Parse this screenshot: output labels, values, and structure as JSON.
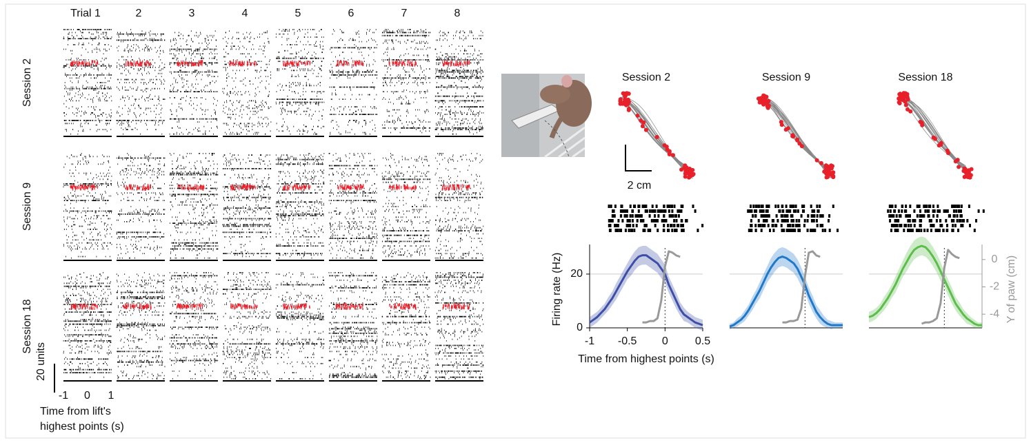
{
  "raster": {
    "trials": [
      "Trial 1",
      "2",
      "3",
      "4",
      "5",
      "6",
      "7",
      "8"
    ],
    "sessions": [
      "Session 2",
      "Session 9",
      "Session 18"
    ],
    "scale_label": "20 units",
    "xticks": [
      -1,
      0,
      1
    ],
    "xlabel": [
      "Time from lift's",
      "highest points (s)"
    ]
  },
  "trajectories": {
    "titles": [
      "Session 2",
      "Session 9",
      "Session 18"
    ],
    "scale_label": "2 cm"
  },
  "axis_labels": {
    "y": "Firing rate (Hz)",
    "y2": "Y of paw (cm)",
    "x": "Time from highest points (s)"
  },
  "chart_data": [
    {
      "type": "line",
      "x": [
        -1,
        -0.95,
        -0.9,
        -0.85,
        -0.8,
        -0.75,
        -0.7,
        -0.65,
        -0.6,
        -0.55,
        -0.5,
        -0.45,
        -0.4,
        -0.35,
        -0.3,
        -0.25,
        -0.2,
        -0.15,
        -0.1,
        -0.05,
        0,
        0.05,
        0.1,
        0.15,
        0.2,
        0.25,
        0.3,
        0.35,
        0.4,
        0.45,
        0.5
      ],
      "xlim": [
        -1,
        0.5
      ],
      "xticks": [
        -1,
        -0.5,
        0,
        0.5
      ],
      "ylim": [
        0,
        31
      ],
      "yticks": [
        0,
        20
      ],
      "grid": true,
      "y2lim": [
        -5,
        1.1
      ],
      "vline": 0,
      "series": [
        {
          "color": "#3d4ea6",
          "values": [
            2,
            3,
            4,
            5.5,
            7,
            9,
            11,
            13.5,
            16,
            18.5,
            21,
            23,
            25,
            26.5,
            27,
            27,
            26,
            25,
            24,
            22,
            20,
            16,
            13,
            10,
            7,
            5,
            4,
            3,
            2,
            1.5,
            1
          ],
          "error": [
            2,
            2,
            2,
            2,
            2,
            2.5,
            2.5,
            3,
            3,
            3,
            3,
            3.5,
            3.5,
            3.5,
            3.5,
            3.5,
            3.5,
            3.5,
            3.5,
            3.5,
            3.5,
            3,
            3,
            3,
            2.5,
            2.5,
            2,
            2,
            2,
            2,
            2
          ]
        },
        {
          "color": "#999999",
          "axis": "y2",
          "values": [
            null,
            null,
            null,
            null,
            null,
            null,
            null,
            null,
            null,
            null,
            null,
            null,
            null,
            null,
            -4.6,
            -4.6,
            -4.5,
            -4.5,
            -4.3,
            -3.0,
            -0.5,
            0.6,
            0.5,
            0.3,
            0.2,
            null,
            null,
            null,
            null,
            null,
            null
          ]
        }
      ]
    },
    {
      "type": "line",
      "x": [
        -1,
        -0.95,
        -0.9,
        -0.85,
        -0.8,
        -0.75,
        -0.7,
        -0.65,
        -0.6,
        -0.55,
        -0.5,
        -0.45,
        -0.4,
        -0.35,
        -0.3,
        -0.25,
        -0.2,
        -0.15,
        -0.1,
        -0.05,
        0,
        0.05,
        0.1,
        0.15,
        0.2,
        0.25,
        0.3,
        0.35,
        0.4,
        0.45,
        0.5
      ],
      "xlim": [
        -1,
        0.5
      ],
      "ylim": [
        0,
        31
      ],
      "hline": 20,
      "y2lim": [
        -5,
        1.1
      ],
      "vline": 0,
      "series": [
        {
          "color": "#1f78c8",
          "values": [
            0.5,
            1,
            2,
            3,
            4.5,
            6.5,
            9,
            11.5,
            14,
            17,
            20,
            22.5,
            24.5,
            26,
            26.5,
            26,
            25,
            24,
            22,
            19,
            16,
            12,
            9,
            6,
            4,
            2.5,
            1.5,
            1,
            1,
            1,
            1
          ],
          "error": [
            1,
            1,
            1.5,
            1.5,
            2,
            2,
            2.5,
            2.5,
            3,
            3,
            3,
            3.5,
            3.5,
            3.5,
            3.5,
            3.5,
            3.5,
            3.5,
            3.5,
            3.5,
            3,
            3,
            3,
            2.5,
            2.5,
            2,
            1.5,
            1.5,
            1,
            1,
            1
          ]
        },
        {
          "color": "#999999",
          "axis": "y2",
          "values": [
            null,
            null,
            null,
            null,
            null,
            null,
            null,
            null,
            null,
            null,
            null,
            null,
            null,
            null,
            -4.6,
            -4.6,
            -4.5,
            -4.5,
            -4.4,
            -3.6,
            -1.2,
            0.5,
            0.6,
            0.3,
            0.2,
            null,
            null,
            null,
            null,
            null,
            null
          ]
        }
      ]
    },
    {
      "type": "line",
      "x": [
        -1,
        -0.95,
        -0.9,
        -0.85,
        -0.8,
        -0.75,
        -0.7,
        -0.65,
        -0.6,
        -0.55,
        -0.5,
        -0.45,
        -0.4,
        -0.35,
        -0.3,
        -0.25,
        -0.2,
        -0.15,
        -0.1,
        -0.05,
        0,
        0.05,
        0.1,
        0.15,
        0.2,
        0.25,
        0.3,
        0.35,
        0.4,
        0.45,
        0.5
      ],
      "xlim": [
        -1,
        0.5
      ],
      "ylim": [
        0,
        31
      ],
      "hline": 20,
      "y2lim": [
        -5,
        1.1
      ],
      "y2ticks": [
        0,
        -2,
        -4
      ],
      "vline": 0,
      "series": [
        {
          "color": "#5cbd4b",
          "values": [
            4,
            4.5,
            5.5,
            7,
            9,
            11,
            13.5,
            16,
            19,
            22,
            24.5,
            27,
            29,
            30,
            30.5,
            30,
            28.5,
            26.5,
            24,
            21,
            18,
            15,
            12,
            9,
            7,
            5,
            3.5,
            2.5,
            1.5,
            1,
            1
          ],
          "error": [
            2,
            2,
            2,
            2,
            2.5,
            2.5,
            2.5,
            3,
            3,
            3,
            3.5,
            3.5,
            3.5,
            3.5,
            3.5,
            3.5,
            3.5,
            3.5,
            3.5,
            3.5,
            3,
            3,
            3,
            2.5,
            2.5,
            2,
            2,
            1.5,
            1.5,
            1,
            1
          ]
        },
        {
          "color": "#999999",
          "axis": "y2",
          "values": [
            null,
            null,
            null,
            null,
            null,
            null,
            null,
            null,
            null,
            null,
            null,
            null,
            null,
            null,
            -4.7,
            -4.6,
            -4.6,
            -4.5,
            -4.3,
            -3.2,
            -0.6,
            0.7,
            0.4,
            0.2,
            0.1,
            null,
            null,
            null,
            null,
            null,
            null
          ]
        }
      ]
    }
  ]
}
